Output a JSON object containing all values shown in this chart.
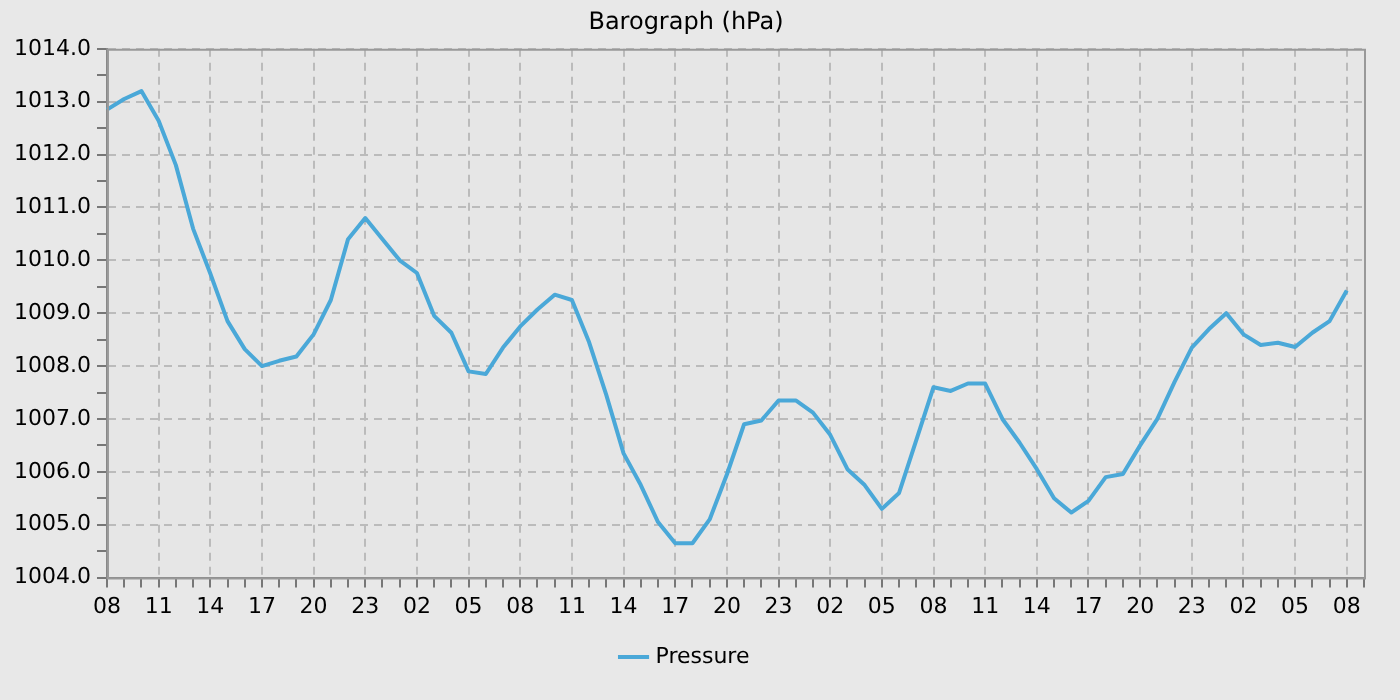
{
  "chart_data": {
    "type": "line",
    "title": "Barograph (hPa)",
    "categories": [
      "08",
      null,
      null,
      "11",
      null,
      null,
      "14",
      null,
      null,
      "17",
      null,
      null,
      "20",
      null,
      null,
      "23",
      null,
      null,
      "02",
      null,
      null,
      "05",
      null,
      null,
      "08",
      null,
      null,
      "11",
      null,
      null,
      "14",
      null,
      null,
      "17",
      null,
      null,
      "20",
      null,
      null,
      "23",
      null,
      null,
      "02",
      null,
      null,
      "05",
      null,
      null,
      "08",
      null,
      null,
      "11",
      null,
      null,
      "14",
      null,
      null,
      "17",
      null,
      null,
      "20",
      null,
      null,
      "23",
      null,
      null,
      "02",
      null,
      null,
      "05",
      null,
      null,
      "08",
      null
    ],
    "series": [
      {
        "name": "Pressure",
        "color": "#4aa8d8",
        "values": [
          1012.85,
          1013.05,
          1013.2,
          1012.64,
          1011.8,
          1010.6,
          1009.75,
          1008.85,
          1008.32,
          1008.0,
          1008.1,
          1008.18,
          1008.6,
          1009.25,
          1010.4,
          1010.8,
          1010.4,
          1010.0,
          1009.76,
          1008.95,
          1008.63,
          1007.9,
          1007.85,
          1008.35,
          1008.75,
          1009.07,
          1009.35,
          1009.25,
          1008.45,
          1007.45,
          1006.35,
          1005.75,
          1005.05,
          1004.65,
          1004.65,
          1005.1,
          1005.95,
          1006.9,
          1006.97,
          1007.35,
          1007.35,
          1007.12,
          1006.7,
          1006.05,
          1005.75,
          1005.3,
          1005.6,
          1006.6,
          1007.6,
          1007.53,
          1007.67,
          1007.67,
          1007.0,
          1006.55,
          1006.05,
          1005.5,
          1005.23,
          1005.45,
          1005.9,
          1005.96,
          1006.5,
          1007.0,
          1007.7,
          1008.35,
          1008.7,
          1009.0,
          1008.6,
          1008.4,
          1008.44,
          1008.36,
          1008.63,
          1008.85,
          1009.43,
          null
        ]
      }
    ],
    "ylim": [
      1004,
      1014
    ],
    "yticks": [
      {
        "value": 1004,
        "label": "1004.0"
      },
      {
        "value": 1004.5,
        "label": null
      },
      {
        "value": 1005,
        "label": "1005.0"
      },
      {
        "value": 1005.5,
        "label": null
      },
      {
        "value": 1006,
        "label": "1006.0"
      },
      {
        "value": 1006.5,
        "label": null
      },
      {
        "value": 1007,
        "label": "1007.0"
      },
      {
        "value": 1007.5,
        "label": null
      },
      {
        "value": 1008,
        "label": "1008.0"
      },
      {
        "value": 1008.5,
        "label": null
      },
      {
        "value": 1009,
        "label": "1009.0"
      },
      {
        "value": 1009.5,
        "label": null
      },
      {
        "value": 1010,
        "label": "1010.0"
      },
      {
        "value": 1010.5,
        "label": null
      },
      {
        "value": 1011,
        "label": "1011.0"
      },
      {
        "value": 1011.5,
        "label": null
      },
      {
        "value": 1012,
        "label": "1012.0"
      },
      {
        "value": 1012.5,
        "label": null
      },
      {
        "value": 1013,
        "label": "1013.0"
      },
      {
        "value": 1013.5,
        "label": null
      },
      {
        "value": 1014,
        "label": "1014.0"
      }
    ],
    "grid": true,
    "legend": "bottom"
  }
}
